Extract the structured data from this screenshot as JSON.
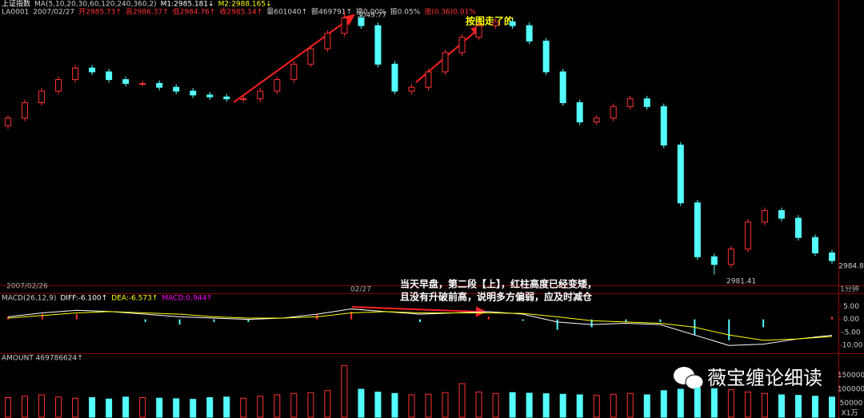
{
  "chart_data": [
    {
      "type": "candlestick",
      "title": "上证指数",
      "legend_items": [
        {
          "text": "MA(5,10,20,30,60,120,240,360,2)",
          "color": "#cccccc"
        },
        {
          "text": "M1:2985.181↓",
          "color": "#ffffff"
        },
        {
          "text": "M2:2988.165↓",
          "color": "#ffff00"
        }
      ],
      "info_items": [
        {
          "text": "LA0001",
          "color": "#cccccc"
        },
        {
          "text": "2007/02/27",
          "color": "#cccccc"
        },
        {
          "text": "开2985.73↑",
          "color": "#ff3232"
        },
        {
          "text": "高2986.37↑",
          "color": "#ff3232"
        },
        {
          "text": "低2984.76↑",
          "color": "#ff3232"
        },
        {
          "text": "收2985.14↑",
          "color": "#ff3232"
        },
        {
          "text": "量601040↑",
          "color": "#cccccc"
        },
        {
          "text": "额469791↑",
          "color": "#cccccc"
        },
        {
          "text": "换0.00%",
          "color": "#cccccc"
        },
        {
          "text": "振0.05%",
          "color": "#cccccc"
        },
        {
          "text": "涨(0.36)0.01%",
          "color": "#ff3232"
        }
      ],
      "x_labels": [
        "2007/02/26",
        "02/27",
        "1分钟"
      ],
      "annotations": [
        "3049.77",
        "2981.41",
        "2984.8",
        "按图走了的",
        "当天早盘，第二段【上】，红柱高度已经变矮，",
        "且没有升破前高，说明多方偏弱，应及时减仓"
      ],
      "up_color": "#ff3232",
      "down_color": "#54fcfc",
      "ylim": [
        2979,
        3051
      ],
      "open": [
        3020,
        3022,
        3026,
        3029,
        3032,
        3035,
        3034,
        3032,
        3031,
        3031,
        3030,
        3029,
        3028,
        3027.5,
        3027,
        3027,
        3029,
        3032,
        3036,
        3040,
        3044,
        3048,
        3046,
        3036,
        3029,
        3030,
        3034,
        3039,
        3043,
        3046,
        3047,
        3046,
        3042,
        3034,
        3026,
        3021,
        3022,
        3025,
        3027,
        3025,
        3015,
        3000,
        2986,
        2984,
        2988,
        2995,
        2998,
        2996,
        2991,
        2987
      ],
      "high": [
        3022.8,
        3026.8,
        3029.8,
        3032.8,
        3035.8,
        3035.8,
        3034.8,
        3032.8,
        3031.8,
        3031.8,
        3030.8,
        3029.8,
        3028.8,
        3028.3,
        3027.8,
        3029.8,
        3032.8,
        3036.8,
        3040.8,
        3044.8,
        3049.77,
        3048.8,
        3046.8,
        3036.8,
        3030.8,
        3034.8,
        3039.8,
        3043.8,
        3046.8,
        3047.8,
        3047.8,
        3046.8,
        3042.8,
        3034.8,
        3026.8,
        3022.8,
        3025.8,
        3027.8,
        3027.8,
        3025.8,
        3015.8,
        3000.8,
        2986.8,
        2988.8,
        2995.8,
        2998.8,
        2998.8,
        2996.8,
        2991.8,
        2987.8
      ],
      "low": [
        3019.2,
        3021.2,
        3025.2,
        3028.2,
        3031.2,
        3033.2,
        3031.2,
        3030.2,
        3030.2,
        3029.2,
        3028.2,
        3027.2,
        3026.7,
        3026.2,
        3026.2,
        3026.2,
        3028.2,
        3031.2,
        3035.2,
        3039.2,
        3043.2,
        3045.2,
        3035.2,
        3028.2,
        3028.2,
        3029.2,
        3033.2,
        3038.2,
        3042.2,
        3045.2,
        3045.2,
        3041.2,
        3033.2,
        3025.2,
        3020.2,
        3020.2,
        3021.2,
        3024.2,
        3024.2,
        3014.2,
        2999.2,
        2985.2,
        2981.41,
        2983.2,
        2987.2,
        2994.2,
        2995.2,
        2990.2,
        2986.2,
        2984.2
      ],
      "close": [
        3022,
        3026,
        3029,
        3032,
        3035,
        3034,
        3032,
        3031,
        3031,
        3030,
        3029,
        3028,
        3027.5,
        3027,
        3027,
        3029,
        3032,
        3036,
        3040,
        3044,
        3048,
        3046,
        3036,
        3029,
        3030,
        3034,
        3039,
        3043,
        3046,
        3047,
        3046,
        3042,
        3034,
        3026,
        3021,
        3022,
        3025,
        3027,
        3025,
        3015,
        3000,
        2986,
        2984,
        2988,
        2995,
        2998,
        2996,
        2991,
        2987,
        2985
      ]
    },
    {
      "type": "macd",
      "title": "MACD(26,12,9)",
      "legend_items": [
        {
          "text": "DIFF:-6.100↑",
          "color": "#ffffff"
        },
        {
          "text": "DEA:-6.573↑",
          "color": "#ffff00"
        },
        {
          "text": "MACD:0.944↑",
          "color": "#ff00ff"
        }
      ],
      "ylim": [
        -13,
        10
      ],
      "yticks": [
        {
          "value": 5,
          "label": "5.00"
        },
        {
          "value": 0,
          "label": "0.00"
        },
        {
          "value": -5,
          "label": "-5.00"
        },
        {
          "value": -10,
          "label": "-10.00"
        }
      ],
      "series": [
        {
          "name": "DIFF",
          "color": "#ffffff",
          "values": [
            1,
            2.5,
            3.5,
            3,
            2,
            1,
            0.5,
            0,
            0.5,
            2,
            4,
            3,
            2,
            2.5,
            3,
            2,
            -1,
            -2,
            -1.5,
            -2,
            -6,
            -10,
            -9.5,
            -7.5,
            -6.1
          ]
        },
        {
          "name": "DEA",
          "color": "#ffff00",
          "values": [
            0.5,
            1.5,
            2.5,
            3,
            2.5,
            2,
            1,
            0.5,
            0.5,
            1,
            2.5,
            3,
            2.5,
            2.5,
            2.5,
            2.3,
            1,
            -0.5,
            -1,
            -1.5,
            -3,
            -6,
            -8,
            -7.5,
            -6.57
          ]
        }
      ],
      "histogram": [
        1,
        2,
        2,
        0,
        -1,
        -2,
        -1,
        -1,
        0,
        2,
        3,
        0,
        -1,
        0,
        1,
        -0.6,
        -4,
        -3,
        -1,
        -1,
        -6,
        -8,
        -3,
        0,
        0.94
      ],
      "up_color": "#ff3232",
      "down_color": "#54fcfc"
    },
    {
      "type": "bar",
      "title": "AMOUNT 469786624↑",
      "unit_label": "X1万",
      "ylim": [
        0,
        200000
      ],
      "yticks": [
        150000,
        100000,
        50000
      ],
      "values": [
        70000,
        75000,
        80000,
        72000,
        68000,
        70000,
        65000,
        72000,
        70000,
        68000,
        66000,
        64000,
        70000,
        72000,
        68000,
        75000,
        80000,
        85000,
        88000,
        95000,
        185000,
        100000,
        90000,
        85000,
        80000,
        82000,
        88000,
        120000,
        90000,
        85000,
        88000,
        86000,
        84000,
        82000,
        80000,
        78000,
        82000,
        85000,
        80000,
        95000,
        100000,
        105000,
        102000,
        98000,
        90000,
        85000,
        80000,
        78000,
        75000,
        72000
      ]
    }
  ],
  "watermark": "薇宝缠论细读"
}
